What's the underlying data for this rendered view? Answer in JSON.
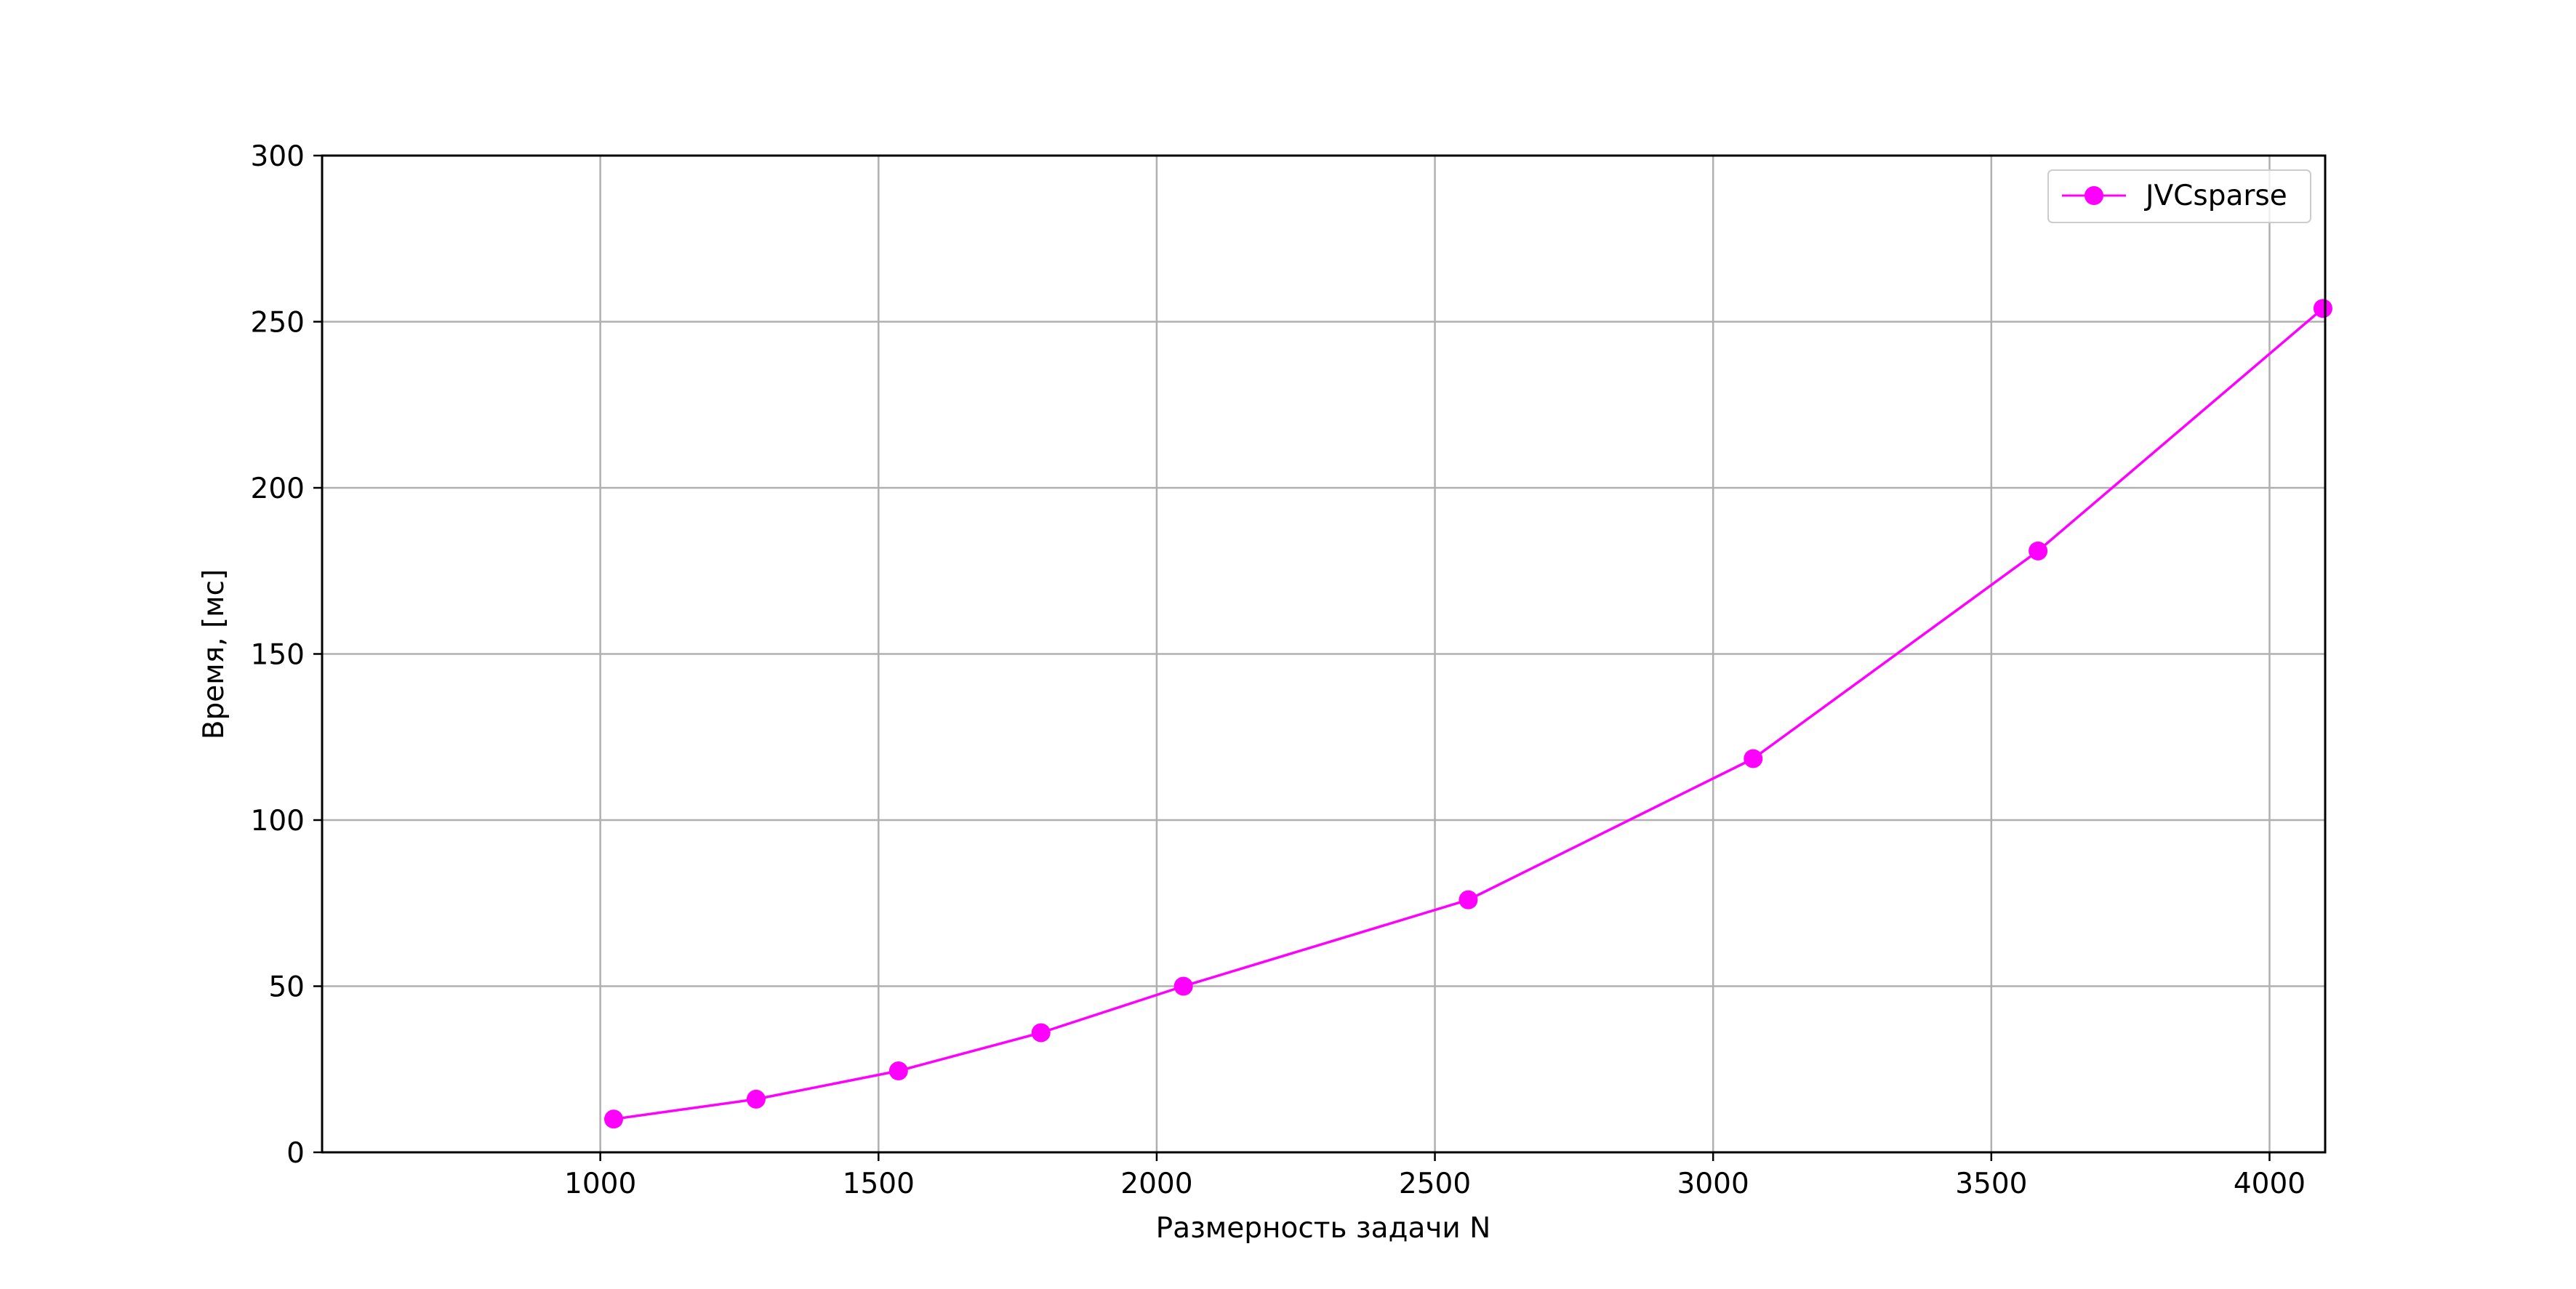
{
  "chart_data": {
    "type": "line",
    "title": "",
    "xlabel": "Размерность задачи N",
    "ylabel": "Время, [мс]",
    "xlim": [
      500,
      4100
    ],
    "ylim": [
      0,
      300
    ],
    "xticks": [
      1000,
      1500,
      2000,
      2500,
      3000,
      3500,
      4000
    ],
    "yticks": [
      0,
      50,
      100,
      150,
      200,
      250,
      300
    ],
    "grid": true,
    "legend_position": "top-right",
    "series": [
      {
        "name": "JVCsparse",
        "color": "#ff00ff",
        "marker": "circle",
        "x": [
          1024,
          1280,
          1536,
          1792,
          2048,
          2560,
          3072,
          3584,
          4096
        ],
        "y": [
          10,
          16,
          24.5,
          36,
          50,
          76,
          118.5,
          181,
          254
        ]
      }
    ]
  }
}
